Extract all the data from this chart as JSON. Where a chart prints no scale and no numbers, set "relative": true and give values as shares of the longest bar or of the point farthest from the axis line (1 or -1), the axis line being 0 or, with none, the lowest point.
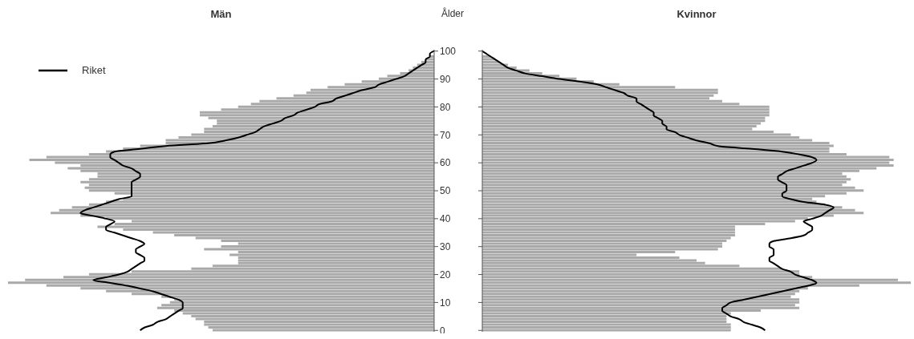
{
  "chart_data": [
    {
      "type": "bar",
      "orientation": "horizontal",
      "relative": true,
      "title": "Män",
      "ylabel": "Ålder",
      "tick_labels": "y",
      "legend": "top left",
      "categories": [
        "100",
        null,
        null,
        null,
        null,
        null,
        null,
        null,
        null,
        null,
        "90",
        null,
        null,
        null,
        null,
        null,
        null,
        null,
        null,
        null,
        "80",
        null,
        null,
        null,
        null,
        null,
        null,
        null,
        null,
        null,
        "70",
        null,
        null,
        null,
        null,
        null,
        null,
        null,
        null,
        null,
        "60",
        null,
        null,
        null,
        null,
        null,
        null,
        null,
        null,
        null,
        "50",
        null,
        null,
        null,
        null,
        null,
        null,
        null,
        null,
        null,
        "40",
        null,
        null,
        null,
        null,
        null,
        null,
        null,
        null,
        null,
        "30",
        null,
        null,
        null,
        null,
        null,
        null,
        null,
        null,
        null,
        "20",
        null,
        null,
        null,
        null,
        null,
        null,
        null,
        null,
        null,
        "10",
        null,
        null,
        null,
        null,
        null,
        null,
        null,
        null,
        null,
        "0"
      ],
      "series": [
        {
          "color": "#a9a9a9",
          "values": [
            0,
            null,
            0.01,
            0.02,
            0.03,
            0.04,
            0.05,
            0.06,
            0.08,
            0.11,
            0.13,
            0.17,
            0.21,
            0.25,
            0.29,
            0.3,
            0.33,
            0.37,
            0.41,
            0.43,
            0.46,
            0.5,
            0.55,
            0.55,
            0.53,
            0.51,
            0.51,
            0.52,
            0.54,
            0.54,
            0.57,
            0.6,
            0.63,
            0.63,
            0.69,
            0.73,
            0.77,
            0.81,
            0.91,
            0.95,
            0.89,
            0.83,
            0.86,
            0.83,
            0.79,
            0.79,
            0.81,
            0.83,
            0.81,
            0.82,
            0.81,
            0.75,
            0.71,
            0.73,
            0.77,
            0.81,
            0.85,
            0.88,
            0.9,
            0.83,
            0.77,
            0.71,
            0.75,
            0.79,
            0.73,
            0.66,
            0.61,
            0.56,
            0.5,
            0.46,
            0.5,
            0.54,
            0.46,
            0.48,
            0.46,
            0.46,
            0.46,
            0.52,
            0.57,
            0.71,
            0.81,
            0.87,
            0.96,
            1,
            0.91,
            0.83,
            0.77,
            0.71,
            0.64,
            0.61,
            0.62,
            0.64,
            0.65,
            0.61,
            0.59,
            0.57,
            0.56,
            0.54,
            0.54,
            0.53,
            0.52
          ]
        },
        {
          "type": "line",
          "name": "Riket",
          "color": "#000000",
          "values": [
            0,
            0.01,
            0.01,
            0.02,
            0.02,
            0.03,
            0.04,
            0.05,
            0.06,
            0.07,
            0.09,
            0.11,
            0.13,
            0.14,
            0.17,
            0.19,
            0.21,
            0.23,
            0.24,
            0.27,
            0.28,
            0.3,
            0.32,
            0.33,
            0.35,
            0.36,
            0.38,
            0.4,
            0.41,
            0.42,
            0.44,
            0.46,
            0.49,
            0.53,
            0.63,
            0.69,
            0.75,
            0.76,
            0.76,
            0.75,
            0.74,
            0.73,
            0.71,
            0.7,
            0.69,
            0.69,
            0.7,
            0.71,
            0.71,
            0.71,
            0.71,
            0.71,
            0.71,
            0.74,
            0.76,
            0.78,
            0.8,
            0.82,
            0.83,
            0.8,
            0.77,
            0.75,
            0.76,
            0.77,
            0.77,
            0.75,
            0.73,
            0.71,
            0.69,
            0.68,
            0.69,
            0.7,
            0.7,
            0.69,
            0.68,
            0.68,
            0.69,
            0.7,
            0.71,
            0.72,
            0.74,
            0.77,
            0.8,
            0.76,
            0.72,
            0.69,
            0.66,
            0.64,
            0.62,
            0.6,
            0.59,
            0.59,
            0.59,
            0.6,
            0.61,
            0.62,
            0.63,
            0.65,
            0.66,
            0.68,
            0.69
          ]
        }
      ]
    },
    {
      "type": "bar",
      "orientation": "horizontal",
      "relative": true,
      "title": "Kvinnor",
      "tick_labels": false,
      "categories": [
        "100",
        null,
        null,
        null,
        null,
        null,
        null,
        null,
        null,
        null,
        "90",
        null,
        null,
        null,
        null,
        null,
        null,
        null,
        null,
        null,
        "80",
        null,
        null,
        null,
        null,
        null,
        null,
        null,
        null,
        null,
        "70",
        null,
        null,
        null,
        null,
        null,
        null,
        null,
        null,
        null,
        "60",
        null,
        null,
        null,
        null,
        null,
        null,
        null,
        null,
        null,
        "50",
        null,
        null,
        null,
        null,
        null,
        null,
        null,
        null,
        null,
        "40",
        null,
        null,
        null,
        null,
        null,
        null,
        null,
        null,
        null,
        "30",
        null,
        null,
        null,
        null,
        null,
        null,
        null,
        null,
        null,
        "20",
        null,
        null,
        null,
        null,
        null,
        null,
        null,
        null,
        null,
        "10",
        null,
        null,
        null,
        null,
        null,
        null,
        null,
        null,
        null,
        "0"
      ],
      "series": [
        {
          "color": "#a9a9a9",
          "values": [
            0,
            null,
            0.02,
            0.03,
            0.04,
            0.06,
            0.08,
            0.11,
            0.14,
            0.18,
            0.22,
            0.26,
            0.32,
            0.45,
            0.55,
            0.55,
            0.54,
            0.53,
            0.56,
            0.6,
            0.67,
            0.67,
            0.67,
            0.67,
            0.66,
            0.66,
            0.65,
            0.64,
            0.63,
            0.68,
            0.72,
            0.74,
            0.77,
            0.81,
            0.82,
            0.81,
            0.81,
            0.85,
            0.95,
            0.96,
            0.95,
            0.96,
            0.92,
            0.88,
            0.84,
            0.85,
            0.86,
            0.85,
            0.84,
            0.87,
            0.89,
            0.85,
            0.8,
            0.77,
            0.78,
            0.8,
            0.84,
            0.87,
            0.89,
            0.82,
            0.76,
            0.73,
            0.66,
            0.59,
            0.59,
            0.59,
            0.59,
            0.58,
            0.57,
            0.56,
            0.56,
            0.55,
            0.45,
            0.36,
            0.46,
            0.5,
            0.52,
            0.6,
            0.7,
            0.74,
            0.74,
            0.77,
            0.97,
            1,
            0.88,
            0.76,
            0.74,
            0.73,
            0.72,
            0.74,
            0.74,
            0.73,
            0.74,
            0.65,
            0.58,
            0.57,
            0.57,
            0.57,
            0.58,
            0.58,
            0.58
          ]
        },
        {
          "type": "line",
          "color": "#000000",
          "values": [
            0,
            0.01,
            0.02,
            0.03,
            0.04,
            0.05,
            0.06,
            0.08,
            0.1,
            0.14,
            0.18,
            0.23,
            0.27,
            0.29,
            0.31,
            0.33,
            0.34,
            0.36,
            0.36,
            0.37,
            0.38,
            0.39,
            0.4,
            0.4,
            0.41,
            0.42,
            0.42,
            0.43,
            0.43,
            0.45,
            0.46,
            0.48,
            0.5,
            0.53,
            0.55,
            0.63,
            0.7,
            0.74,
            0.77,
            0.78,
            0.77,
            0.75,
            0.73,
            0.71,
            0.7,
            0.69,
            0.69,
            0.7,
            0.71,
            0.71,
            0.71,
            0.7,
            0.7,
            0.72,
            0.75,
            0.8,
            0.82,
            0.81,
            0.8,
            0.79,
            0.77,
            0.75,
            0.76,
            0.77,
            0.77,
            0.76,
            0.75,
            0.72,
            0.68,
            0.67,
            0.67,
            0.68,
            0.68,
            0.68,
            0.67,
            0.67,
            0.68,
            0.69,
            0.7,
            0.72,
            0.73,
            0.75,
            0.77,
            0.78,
            0.76,
            0.73,
            0.7,
            0.67,
            0.64,
            0.61,
            0.58,
            0.57,
            0.56,
            0.56,
            0.57,
            0.58,
            0.6,
            0.61,
            0.63,
            0.65,
            0.66
          ]
        }
      ]
    }
  ]
}
